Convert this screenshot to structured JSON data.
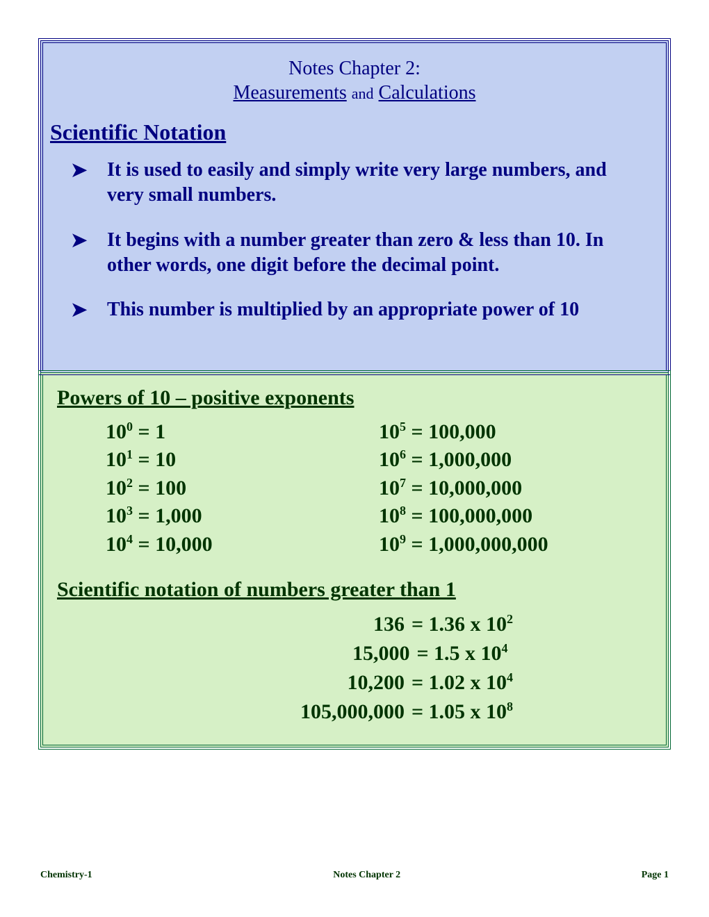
{
  "colors": {
    "blue_box_bg": "#c2d0f2",
    "blue_box_border": "#000080",
    "blue_text": "#000080",
    "green_box_bg": "#d6f0c6",
    "green_box_border": "#006633",
    "green_text": "#003300",
    "page_bg": "#ffffff"
  },
  "header": {
    "line1": "Notes Chapter 2:",
    "subtitle_word1": "Measurements",
    "subtitle_and": "and",
    "subtitle_word2": "Calculations"
  },
  "section1": {
    "heading": "Scientific Notation",
    "bullets": [
      "It is used to easily and simply write very large numbers, and very small numbers.",
      "It begins with a number greater than zero & less than 10.  In other words, one digit before the decimal point.",
      "This number is multiplied by an appropriate power of 10"
    ],
    "bullet_marker": "➤"
  },
  "section2": {
    "heading": "Powers of 10 – positive exponents",
    "powers": [
      {
        "exp": "0",
        "val": "1"
      },
      {
        "exp": "1",
        "val": "10"
      },
      {
        "exp": "2",
        "val": "100"
      },
      {
        "exp": "3",
        "val": "1,000"
      },
      {
        "exp": "4",
        "val": "10,000"
      },
      {
        "exp": "5",
        "val": "100,000"
      },
      {
        "exp": "6",
        "val": "1,000,000"
      },
      {
        "exp": "7",
        "val": "10,000,000"
      },
      {
        "exp": "8",
        "val": "100,000,000"
      },
      {
        "exp": "9",
        "val": "1,000,000,000"
      }
    ]
  },
  "section3": {
    "heading": "Scientific notation of numbers greater than 1",
    "examples": [
      {
        "n": "136",
        "coef": "1.36",
        "exp": "2"
      },
      {
        "n": "15,000",
        "coef": "1.5",
        "exp": "4"
      },
      {
        "n": "10,200",
        "coef": "1.02",
        "exp": "4"
      },
      {
        "n": "105,000,000",
        "coef": "1.05",
        "exp": "8"
      }
    ]
  },
  "footer": {
    "left": "Chemistry-1",
    "center": "Notes Chapter 2",
    "right": "Page 1"
  }
}
